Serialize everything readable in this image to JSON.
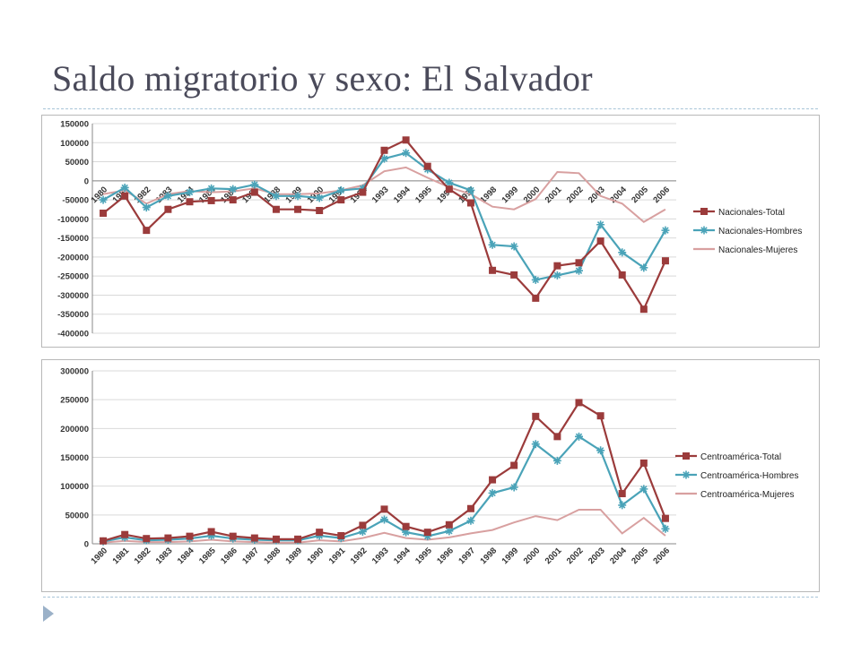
{
  "slide": {
    "title": "Saldo migratorio y sexo: El Salvador"
  },
  "colors": {
    "total": "#9b3b3b",
    "hombres": "#4aa3b8",
    "mujeres": "#d8a0a0",
    "grid": "#d9d9d9",
    "bullet": "#9bb1c8"
  },
  "chart_data": [
    {
      "type": "line",
      "x": [
        "1980",
        "1981",
        "1982",
        "1983",
        "1984",
        "1985",
        "1986",
        "1987",
        "1988",
        "1989",
        "1990",
        "1991",
        "1992",
        "1993",
        "1994",
        "1995",
        "1996",
        "1997",
        "1998",
        "1999",
        "2000",
        "2001",
        "2002",
        "2003",
        "2004",
        "2005",
        "2006"
      ],
      "ylim": [
        -400000,
        150000
      ],
      "yticks": [
        -400000,
        -350000,
        -300000,
        -250000,
        -200000,
        -150000,
        -100000,
        -50000,
        0,
        50000,
        100000,
        150000
      ],
      "ytick_labels": [
        "-400000",
        "-350000",
        "-300000",
        "-250000",
        "-200000",
        "-150000",
        "-100000",
        "-50000",
        "0",
        "50000",
        "100000",
        "150000"
      ],
      "legend_position": "right",
      "grid": true,
      "series": [
        {
          "name": "Nacionales-Total",
          "marker": "square",
          "values": [
            -85000,
            -40000,
            -130000,
            -75000,
            -55000,
            -52000,
            -50000,
            -30000,
            -75000,
            -75000,
            -78000,
            -50000,
            -30000,
            80000,
            107000,
            38000,
            -22000,
            -58000,
            -235000,
            -247000,
            -308000,
            -223000,
            -215000,
            -158000,
            -247000,
            -337000,
            -210000
          ]
        },
        {
          "name": "Nacionales-Hombres",
          "marker": "star",
          "values": [
            -50000,
            -18000,
            -70000,
            -40000,
            -30000,
            -20000,
            -22000,
            -10000,
            -40000,
            -40000,
            -45000,
            -25000,
            -20000,
            58000,
            73000,
            30000,
            -5000,
            -25000,
            -168000,
            -172000,
            -260000,
            -248000,
            -236000,
            -115000,
            -188000,
            -228000,
            -130000
          ]
        },
        {
          "name": "Nacionales-Mujeres",
          "marker": "none",
          "values": [
            -35000,
            -25000,
            -60000,
            -35000,
            -27000,
            -30000,
            -28000,
            -20000,
            -35000,
            -35000,
            -33000,
            -25000,
            -12000,
            25000,
            35000,
            8000,
            -17000,
            -35000,
            -68000,
            -75000,
            -48000,
            23000,
            20000,
            -40000,
            -60000,
            -108000,
            -75000
          ]
        }
      ]
    },
    {
      "type": "line",
      "x": [
        "1980",
        "1981",
        "1982",
        "1983",
        "1984",
        "1985",
        "1986",
        "1987",
        "1988",
        "1989",
        "1990",
        "1991",
        "1992",
        "1993",
        "1994",
        "1995",
        "1996",
        "1997",
        "1998",
        "1999",
        "2000",
        "2001",
        "2002",
        "2003",
        "2004",
        "2005",
        "2006"
      ],
      "ylim": [
        0,
        300000
      ],
      "yticks": [
        0,
        50000,
        100000,
        150000,
        200000,
        250000,
        300000
      ],
      "ytick_labels": [
        "0",
        "50000",
        "100000",
        "150000",
        "200000",
        "250000",
        "300000"
      ],
      "legend_position": "right",
      "grid": true,
      "series": [
        {
          "name": "Centroamérica-Total",
          "marker": "square",
          "values": [
            5000,
            16000,
            9000,
            10000,
            13000,
            21000,
            13000,
            10000,
            8000,
            8000,
            20000,
            14000,
            32000,
            60000,
            30000,
            20000,
            33000,
            61000,
            111000,
            136000,
            221000,
            186000,
            245000,
            222000,
            87000,
            140000,
            44000
          ]
        },
        {
          "name": "Centroamérica-Hombres",
          "marker": "star",
          "values": [
            4000,
            11000,
            6000,
            7000,
            9000,
            14000,
            9000,
            7000,
            6000,
            6000,
            14000,
            10000,
            21000,
            42000,
            20000,
            13000,
            22000,
            40000,
            88000,
            98000,
            173000,
            144000,
            186000,
            162000,
            67000,
            95000,
            26000
          ]
        },
        {
          "name": "Centroamérica-Mujeres",
          "marker": "none",
          "values": [
            2000,
            5000,
            3000,
            3000,
            4000,
            7000,
            4000,
            3000,
            2000,
            2000,
            6000,
            4000,
            10000,
            19000,
            10000,
            7000,
            11000,
            18000,
            24000,
            37000,
            48000,
            41000,
            59000,
            59000,
            18000,
            45000,
            14000
          ]
        }
      ]
    }
  ]
}
